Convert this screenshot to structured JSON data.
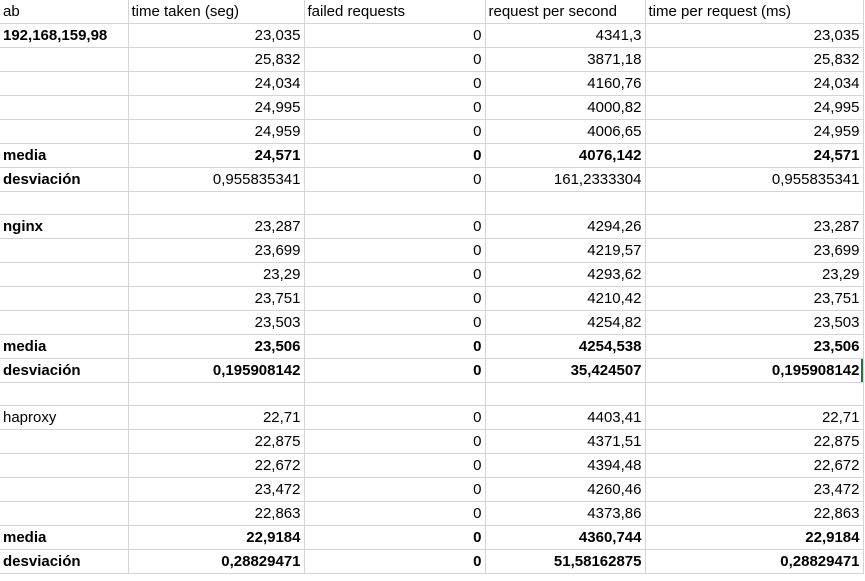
{
  "headers": [
    "ab",
    "time taken (seg)",
    "failed requests",
    "request per second",
    "time per request (ms)"
  ],
  "rows": [
    {
      "cells": [
        "192,168,159,98",
        "23,035",
        "0",
        "4341,3",
        "23,035"
      ],
      "style": "label-bold"
    },
    {
      "cells": [
        "",
        "25,832",
        "0",
        "3871,18",
        "25,832"
      ],
      "style": ""
    },
    {
      "cells": [
        "",
        "24,034",
        "0",
        "4160,76",
        "24,034"
      ],
      "style": ""
    },
    {
      "cells": [
        "",
        "24,995",
        "0",
        "4000,82",
        "24,995"
      ],
      "style": ""
    },
    {
      "cells": [
        "",
        "24,959",
        "0",
        "4006,65",
        "24,959"
      ],
      "style": ""
    },
    {
      "cells": [
        "media",
        "24,571",
        "0",
        "4076,142",
        "24,571"
      ],
      "style": "bold"
    },
    {
      "cells": [
        "desviación",
        "0,955835341",
        "0",
        "161,2333304",
        "0,955835341"
      ],
      "style": "label-bold"
    },
    {
      "cells": [
        "",
        "",
        "",
        "",
        ""
      ],
      "style": ""
    },
    {
      "cells": [
        "nginx",
        "23,287",
        "0",
        "4294,26",
        "23,287"
      ],
      "style": "label-bold"
    },
    {
      "cells": [
        "",
        "23,699",
        "0",
        "4219,57",
        "23,699"
      ],
      "style": ""
    },
    {
      "cells": [
        "",
        "23,29",
        "0",
        "4293,62",
        "23,29"
      ],
      "style": ""
    },
    {
      "cells": [
        "",
        "23,751",
        "0",
        "4210,42",
        "23,751"
      ],
      "style": ""
    },
    {
      "cells": [
        "",
        "23,503",
        "0",
        "4254,82",
        "23,503"
      ],
      "style": ""
    },
    {
      "cells": [
        "media",
        "23,506",
        "0",
        "4254,538",
        "23,506"
      ],
      "style": "bold"
    },
    {
      "cells": [
        "desviación",
        "0,195908142",
        "0",
        "35,424507",
        "0,195908142"
      ],
      "style": "bold",
      "selected_col": 4
    },
    {
      "cells": [
        "",
        "",
        "",
        "",
        ""
      ],
      "style": ""
    },
    {
      "cells": [
        "haproxy",
        "22,71",
        "0",
        "4403,41",
        "22,71"
      ],
      "style": ""
    },
    {
      "cells": [
        "",
        "22,875",
        "0",
        "4371,51",
        "22,875"
      ],
      "style": ""
    },
    {
      "cells": [
        "",
        "22,672",
        "0",
        "4394,48",
        "22,672"
      ],
      "style": ""
    },
    {
      "cells": [
        "",
        "23,472",
        "0",
        "4260,46",
        "23,472"
      ],
      "style": ""
    },
    {
      "cells": [
        "",
        "22,863",
        "0",
        "4373,86",
        "22,863"
      ],
      "style": ""
    },
    {
      "cells": [
        "media",
        "22,9184",
        "0",
        "4360,744",
        "22,9184"
      ],
      "style": "bold"
    },
    {
      "cells": [
        "desviación",
        "0,28829471",
        "0",
        "51,58162875",
        "0,28829471"
      ],
      "style": "bold"
    }
  ]
}
